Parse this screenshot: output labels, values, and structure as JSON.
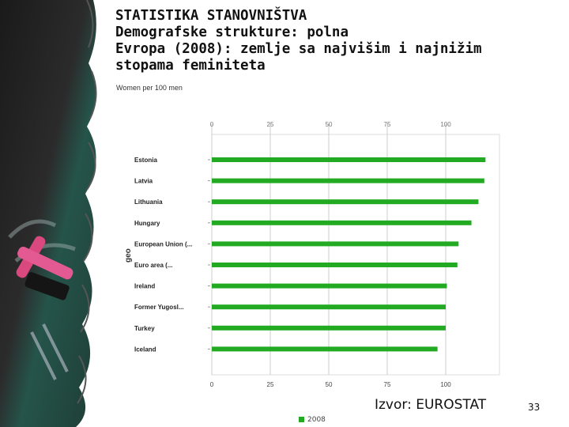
{
  "slide": {
    "title_lines": [
      "STATISTIKA STANOVNIŠTVA",
      "Demografske strukture: polna",
      "Evropa (2008): zemlje sa najvišim i najnižim",
      "stopama feminiteta"
    ],
    "source": "Izvor: EUROSTAT",
    "page_number": "33"
  },
  "chart_data": {
    "type": "bar",
    "orientation": "horizontal",
    "subtitle": "Women per 100 men",
    "ylabel": "geo",
    "categories": [
      "Estonia",
      "Latvia",
      "Lithuania",
      "Hungary",
      "European Union (...",
      "Euro area (...",
      "Ireland",
      "Former Yugosl...",
      "Turkey",
      "Iceland"
    ],
    "series": [
      {
        "name": "2008",
        "color": "#22aa22",
        "values": [
          117,
          116.5,
          114,
          111,
          105.5,
          105,
          100.5,
          100,
          100,
          96.5
        ]
      }
    ],
    "xlim": [
      0,
      125
    ],
    "xticks": [
      "0",
      "25",
      "50",
      "75",
      "100"
    ],
    "grid": true,
    "legend_position": "bottom"
  }
}
